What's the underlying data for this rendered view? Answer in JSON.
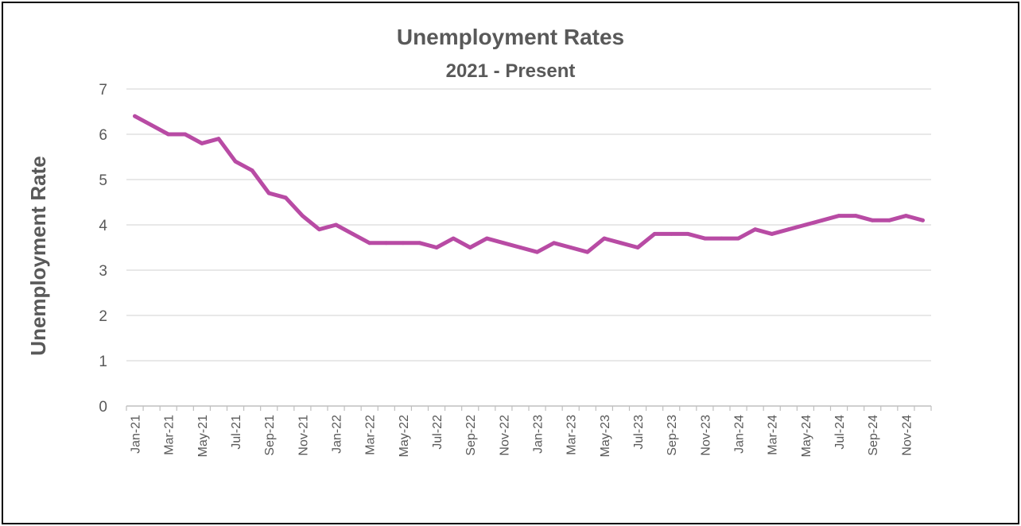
{
  "chart_data": {
    "type": "line",
    "title": "Unemployment Rates",
    "subtitle": "2021 - Present",
    "ylabel": "Unemployment Rate",
    "xlabel": "",
    "ylim": [
      0,
      7
    ],
    "yticks": [
      0,
      1,
      2,
      3,
      4,
      5,
      6,
      7
    ],
    "grid": true,
    "legend": "none",
    "line_color": "#B84BA4",
    "x": [
      "Jan-21",
      "Feb-21",
      "Mar-21",
      "Apr-21",
      "May-21",
      "Jun-21",
      "Jul-21",
      "Aug-21",
      "Sep-21",
      "Oct-21",
      "Nov-21",
      "Dec-21",
      "Jan-22",
      "Feb-22",
      "Mar-22",
      "Apr-22",
      "May-22",
      "Jun-22",
      "Jul-22",
      "Aug-22",
      "Sep-22",
      "Oct-22",
      "Nov-22",
      "Dec-22",
      "Jan-23",
      "Feb-23",
      "Mar-23",
      "Apr-23",
      "May-23",
      "Jun-23",
      "Jul-23",
      "Aug-23",
      "Sep-23",
      "Oct-23",
      "Nov-23",
      "Dec-23",
      "Jan-24",
      "Feb-24",
      "Mar-24",
      "Apr-24",
      "May-24",
      "Jun-24",
      "Jul-24",
      "Aug-24",
      "Sep-24",
      "Oct-24",
      "Nov-24",
      "Dec-24"
    ],
    "x_tick_labels": [
      "Jan-21",
      "Mar-21",
      "May-21",
      "Jul-21",
      "Sep-21",
      "Nov-21",
      "Jan-22",
      "Mar-22",
      "May-22",
      "Jul-22",
      "Sep-22",
      "Nov-22",
      "Jan-23",
      "Mar-23",
      "May-23",
      "Jul-23",
      "Sep-23",
      "Nov-23",
      "Jan-24",
      "Mar-24",
      "May-24",
      "Jul-24",
      "Sep-24",
      "Nov-24"
    ],
    "series": [
      {
        "values": [
          6.4,
          6.2,
          6.0,
          6.0,
          5.8,
          5.9,
          5.4,
          5.2,
          4.7,
          4.6,
          4.2,
          3.9,
          4.0,
          3.8,
          3.6,
          3.6,
          3.6,
          3.6,
          3.5,
          3.7,
          3.5,
          3.7,
          3.6,
          3.5,
          3.4,
          3.6,
          3.5,
          3.4,
          3.7,
          3.6,
          3.5,
          3.8,
          3.8,
          3.8,
          3.7,
          3.7,
          3.7,
          3.9,
          3.8,
          3.9,
          4.0,
          4.1,
          4.2,
          4.2,
          4.1,
          4.1,
          4.2,
          4.1
        ]
      }
    ]
  }
}
